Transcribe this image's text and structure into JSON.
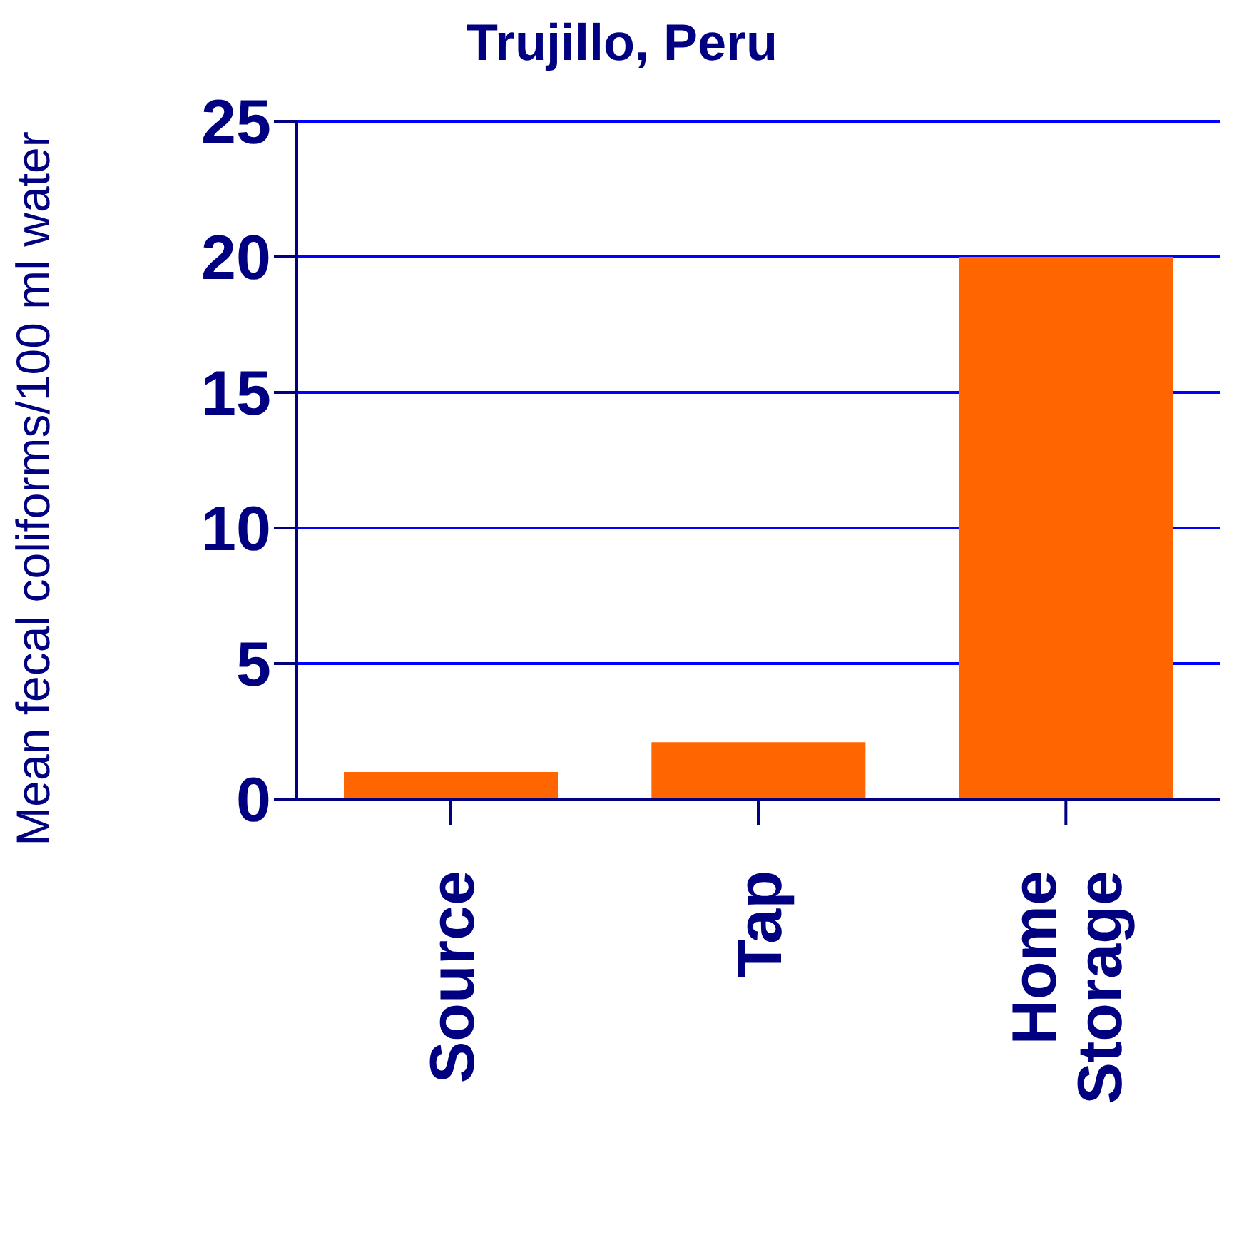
{
  "chart_data": {
    "type": "bar",
    "title": "Trujillo, Peru",
    "ylabel": "Mean fecal coliforms/100 ml water",
    "categories": [
      "Source",
      "Tap",
      "Home Storage"
    ],
    "values": [
      1.0,
      2.1,
      20
    ],
    "color": "#ff6600",
    "ylim": [
      0,
      25
    ],
    "yticks": [
      0,
      5,
      10,
      15,
      20,
      25
    ],
    "grid": "y"
  }
}
